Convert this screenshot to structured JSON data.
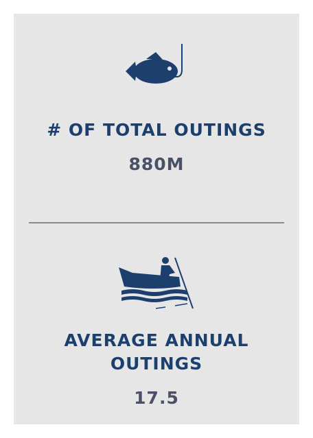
{
  "stats": [
    {
      "label": "# OF TOTAL OUTINGS",
      "value": "880M"
    },
    {
      "label_lines": [
        "AVERAGE ANNUAL",
        "OUTINGS"
      ],
      "value": "17.5"
    }
  ]
}
